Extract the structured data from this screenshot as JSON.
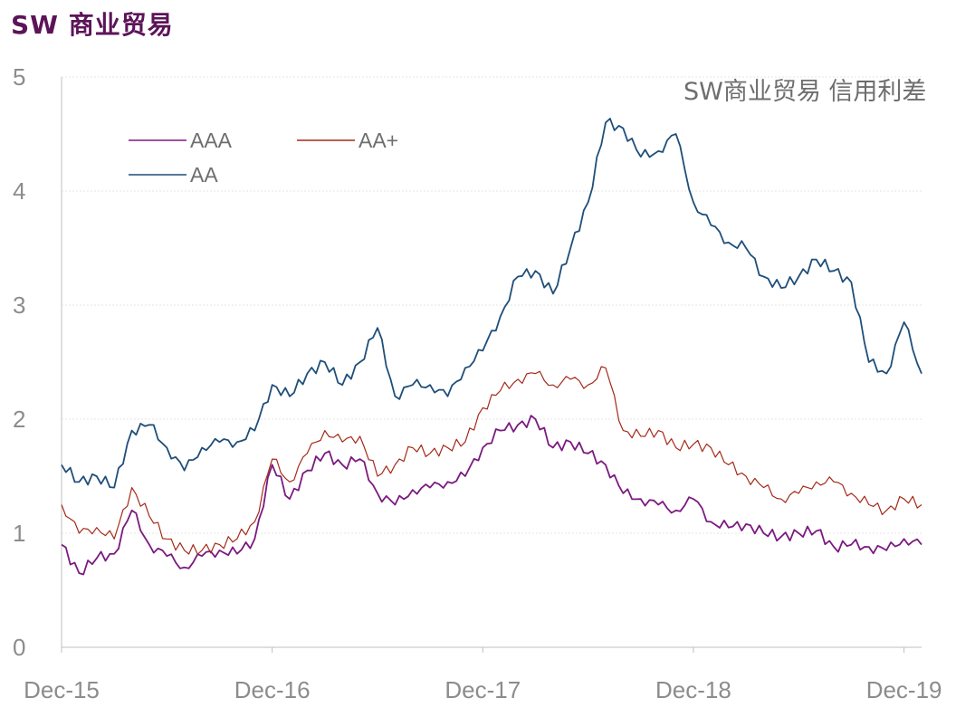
{
  "title": "SW 商业贸易",
  "colors": {
    "title": "#5c1458",
    "axis": "#bfbfbf",
    "grid": "#e6e6e6",
    "tick_text": "#8c8c8c"
  },
  "chart_data": {
    "type": "line",
    "title": "SW商业贸易 信用利差",
    "xlabel": "",
    "ylabel": "",
    "x_start": "Dec-15",
    "x_end": "Jan-20",
    "xticks": [
      "Dec-15",
      "Dec-16",
      "Dec-17",
      "Dec-18",
      "Dec-19"
    ],
    "ylim": [
      0,
      5
    ],
    "yticks": [
      0,
      1,
      2,
      3,
      4,
      5
    ],
    "grid": true,
    "legend_position": "top-left",
    "series": [
      {
        "name": "AAA",
        "color": "#7b1a80",
        "x": [
          "Dec-15",
          "Jan-16",
          "Feb-16",
          "Mar-16",
          "Apr-16",
          "May-16",
          "Jun-16",
          "Jul-16",
          "Aug-16",
          "Sep-16",
          "Oct-16",
          "Nov-16",
          "Dec-16",
          "Jan-17",
          "Feb-17",
          "Mar-17",
          "Apr-17",
          "May-17",
          "Jun-17",
          "Jul-17",
          "Aug-17",
          "Sep-17",
          "Oct-17",
          "Nov-17",
          "Dec-17",
          "Jan-18",
          "Feb-18",
          "Mar-18",
          "Apr-18",
          "May-18",
          "Jun-18",
          "Jul-18",
          "Aug-18",
          "Sep-18",
          "Oct-18",
          "Nov-18",
          "Dec-18",
          "Jan-19",
          "Feb-19",
          "Mar-19",
          "Apr-19",
          "May-19",
          "Jun-19",
          "Jul-19",
          "Aug-19",
          "Sep-19",
          "Oct-19",
          "Nov-19",
          "Dec-19",
          "Jan-20"
        ],
        "values": [
          0.9,
          0.65,
          0.78,
          0.82,
          1.2,
          0.9,
          0.8,
          0.7,
          0.8,
          0.85,
          0.82,
          0.95,
          1.6,
          1.3,
          1.55,
          1.7,
          1.6,
          1.65,
          1.35,
          1.25,
          1.38,
          1.4,
          1.45,
          1.5,
          1.75,
          1.9,
          1.95,
          2.0,
          1.75,
          1.8,
          1.7,
          1.6,
          1.35,
          1.3,
          1.25,
          1.2,
          1.3,
          1.1,
          1.05,
          1.08,
          1.0,
          0.97,
          1.0,
          1.02,
          0.88,
          0.9,
          0.88,
          0.85,
          0.95,
          0.9
        ]
      },
      {
        "name": "AA+",
        "color": "#a42a1a",
        "x": [
          "Dec-15",
          "Jan-16",
          "Feb-16",
          "Mar-16",
          "Apr-16",
          "May-16",
          "Jun-16",
          "Jul-16",
          "Aug-16",
          "Sep-16",
          "Oct-16",
          "Nov-16",
          "Dec-16",
          "Jan-17",
          "Feb-17",
          "Mar-17",
          "Apr-17",
          "May-17",
          "Jun-17",
          "Jul-17",
          "Aug-17",
          "Sep-17",
          "Oct-17",
          "Nov-17",
          "Dec-17",
          "Jan-18",
          "Feb-18",
          "Mar-18",
          "Apr-18",
          "May-18",
          "Jun-18",
          "Jul-18",
          "Aug-18",
          "Sep-18",
          "Oct-18",
          "Nov-18",
          "Dec-18",
          "Jan-19",
          "Feb-19",
          "Mar-19",
          "Apr-19",
          "May-19",
          "Jun-19",
          "Jul-19",
          "Aug-19",
          "Sep-19",
          "Oct-19",
          "Nov-19",
          "Dec-19",
          "Jan-20"
        ],
        "values": [
          1.25,
          1.0,
          1.05,
          0.95,
          1.4,
          1.15,
          0.95,
          0.85,
          0.85,
          0.9,
          0.95,
          1.1,
          1.65,
          1.45,
          1.7,
          1.9,
          1.8,
          1.85,
          1.5,
          1.6,
          1.75,
          1.7,
          1.75,
          1.8,
          2.1,
          2.25,
          2.35,
          2.4,
          2.3,
          2.35,
          2.3,
          2.45,
          1.9,
          1.85,
          1.9,
          1.75,
          1.78,
          1.75,
          1.6,
          1.5,
          1.4,
          1.3,
          1.35,
          1.45,
          1.45,
          1.35,
          1.25,
          1.2,
          1.3,
          1.25
        ]
      },
      {
        "name": "AA",
        "color": "#1f4e79",
        "x": [
          "Dec-15",
          "Jan-16",
          "Feb-16",
          "Mar-16",
          "Apr-16",
          "May-16",
          "Jun-16",
          "Jul-16",
          "Aug-16",
          "Sep-16",
          "Oct-16",
          "Nov-16",
          "Dec-16",
          "Jan-17",
          "Feb-17",
          "Mar-17",
          "Apr-17",
          "May-17",
          "Jun-17",
          "Jul-17",
          "Aug-17",
          "Sep-17",
          "Oct-17",
          "Nov-17",
          "Dec-17",
          "Jan-18",
          "Feb-18",
          "Mar-18",
          "Apr-18",
          "May-18",
          "Jun-18",
          "Jul-18",
          "Aug-18",
          "Sep-18",
          "Oct-18",
          "Nov-18",
          "Dec-18",
          "Jan-19",
          "Feb-19",
          "Mar-19",
          "Apr-19",
          "May-19",
          "Jun-19",
          "Jul-19",
          "Aug-19",
          "Sep-19",
          "Oct-19",
          "Nov-19",
          "Dec-19",
          "Jan-20"
        ],
        "values": [
          1.6,
          1.45,
          1.5,
          1.4,
          1.9,
          1.95,
          1.75,
          1.55,
          1.75,
          1.8,
          1.8,
          1.9,
          2.3,
          2.2,
          2.4,
          2.5,
          2.3,
          2.5,
          2.8,
          2.2,
          2.3,
          2.3,
          2.2,
          2.45,
          2.6,
          2.9,
          3.25,
          3.3,
          3.1,
          3.5,
          3.9,
          4.6,
          4.55,
          4.3,
          4.35,
          4.5,
          3.9,
          3.7,
          3.55,
          3.5,
          3.25,
          3.15,
          3.25,
          3.4,
          3.3,
          3.2,
          2.5,
          2.4,
          2.85,
          2.4
        ]
      }
    ]
  }
}
